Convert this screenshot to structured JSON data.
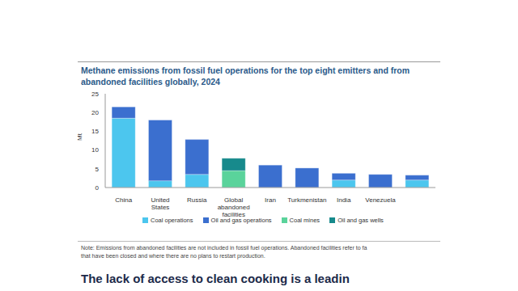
{
  "chart_data": {
    "type": "bar",
    "title": "Methane emissions from fossil fuel operations for the top eight emitters and from abandoned facilities globally, 2024",
    "y_label": "Mt",
    "categories": [
      "China",
      "United States",
      "Russia",
      "Global abandoned facilities",
      "Iran",
      "Turkmenistan",
      "India",
      "Venezuela",
      null
    ],
    "series": [
      {
        "name": "Coal operations",
        "color": "#4cc6ee",
        "values": [
          18.5,
          1.8,
          3.5,
          null,
          null,
          null,
          2.0,
          null,
          2.0
        ]
      },
      {
        "name": "Oil and gas operations",
        "color": "#3b6fcf",
        "values": [
          3.0,
          16.2,
          9.3,
          null,
          6.0,
          5.2,
          1.8,
          3.5,
          1.3
        ]
      },
      {
        "name": "Coal mines",
        "color": "#5ad39b",
        "values": [
          null,
          null,
          null,
          4.5,
          null,
          null,
          null,
          null,
          null
        ]
      },
      {
        "name": "Oil and gas wells",
        "color": "#178a8c",
        "values": [
          null,
          null,
          null,
          3.3,
          null,
          null,
          null,
          null,
          null
        ]
      }
    ],
    "stacked": true,
    "ylim": [
      0,
      25
    ],
    "yticks": [
      0,
      5,
      10,
      15,
      20,
      25
    ],
    "grid": false,
    "legend": "bottom",
    "annotations": [
      "Note: Emissions from abandoned facilities are not included in fossil fuel operations. Abandoned facilities refer to fa",
      "that have been closed and where there are no plans to restart production.",
      "The lack of access to clean cooking is a leadin"
    ]
  }
}
